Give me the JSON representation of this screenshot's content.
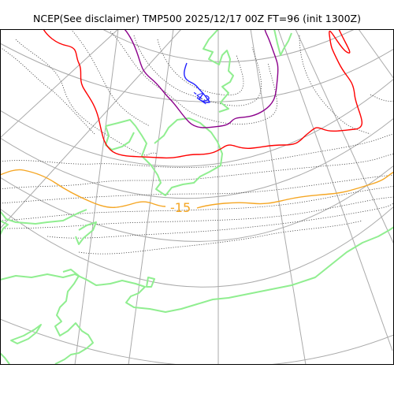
{
  "header": {
    "title": "NCEP(See disclaimer) TMP500 2025/12/17 00Z FT=96 (init 1300Z)"
  },
  "map": {
    "contour_labels": [
      {
        "text": "-15",
        "color": "#f5a623"
      },
      {
        "text": "-42",
        "color": "#1f1fff"
      }
    ],
    "colors": {
      "graticule": "#aaaaaa",
      "coastline": "#90ee90",
      "isotherm_dotted": "#444444",
      "contour_red": "#ff0000",
      "contour_orange": "#f5a623",
      "contour_purple": "#8b008b",
      "contour_blue": "#1f1fff"
    }
  }
}
